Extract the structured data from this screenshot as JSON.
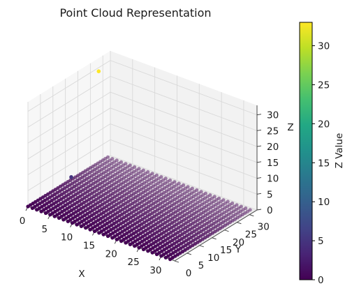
{
  "chart_data": {
    "type": "scatter",
    "projection": "3d",
    "title": "Point Cloud Representation",
    "xlabel": "X",
    "ylabel": "Y",
    "zlabel": "Z",
    "xlim": [
      0,
      33
    ],
    "ylim": [
      0,
      33
    ],
    "zlim": [
      0,
      33
    ],
    "xticks": [
      0,
      5,
      10,
      15,
      20,
      25,
      30
    ],
    "yticks": [
      0,
      5,
      10,
      15,
      20,
      25,
      30
    ],
    "zticks": [
      0,
      5,
      10,
      15,
      20,
      25,
      30
    ],
    "grid": true,
    "colormap": "viridis",
    "colorbar": {
      "label": "Z Value",
      "range": [
        0,
        33
      ],
      "ticks": [
        0,
        5,
        10,
        15,
        20,
        25,
        30
      ]
    },
    "surface": {
      "x_range": [
        0,
        32
      ],
      "y_range": [
        0,
        32
      ],
      "step": 1,
      "z_baseline": 0
    },
    "points_above_surface": [
      {
        "x": 3,
        "y": 23,
        "z": 33
      },
      {
        "x": 3,
        "y": 12,
        "z": 5
      }
    ],
    "marker_color_low": "#440154",
    "marker_color_high": "#fde725"
  }
}
